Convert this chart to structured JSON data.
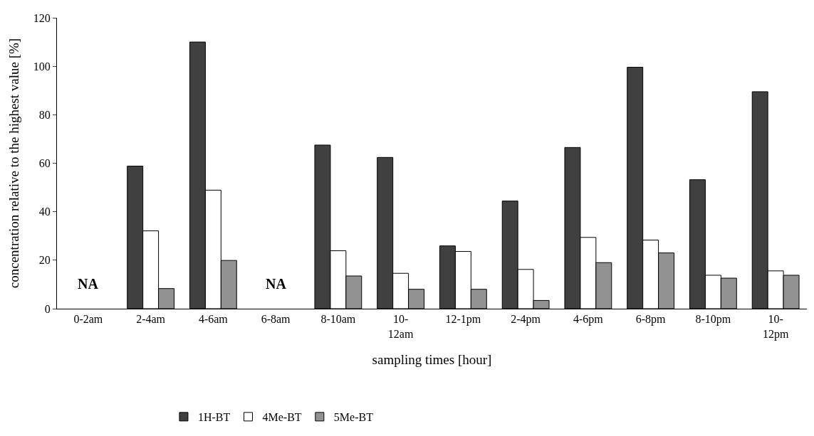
{
  "chart_data": {
    "type": "bar",
    "xlabel": "sampling times [hour]",
    "ylabel": "concentration relative to the highest value [%]",
    "categories": [
      "0-2am",
      "2-4am",
      "4-6am",
      "6-8am",
      "8-10am",
      "10-12am",
      "12-1pm",
      "2-4pm",
      "4-6pm",
      "6-8pm",
      "8-10pm",
      "10-12pm"
    ],
    "series": [
      {
        "name": "1H-BT",
        "color": "#404040",
        "values": [
          null,
          58.8,
          110,
          null,
          67.5,
          62.4,
          25.9,
          44.4,
          66.5,
          99.6,
          53.2,
          89.5
        ]
      },
      {
        "name": "4Me-BT",
        "color": "#ffffff",
        "values": [
          null,
          32.1,
          48.9,
          null,
          23.9,
          14.6,
          23.6,
          16.2,
          29.4,
          28.3,
          13.8,
          15.6
        ]
      },
      {
        "name": "5Me-BT",
        "color": "#929292",
        "values": [
          null,
          8.3,
          19.9,
          null,
          13.5,
          8.0,
          8.0,
          3.4,
          19.0,
          23.0,
          12.6,
          13.8
        ]
      }
    ],
    "annotations": [
      "NA",
      "NA"
    ],
    "ylim": [
      0,
      120
    ],
    "yticks": [
      0,
      20,
      40,
      60,
      80,
      100,
      120
    ],
    "grid": false,
    "legend": "bottom left"
  }
}
